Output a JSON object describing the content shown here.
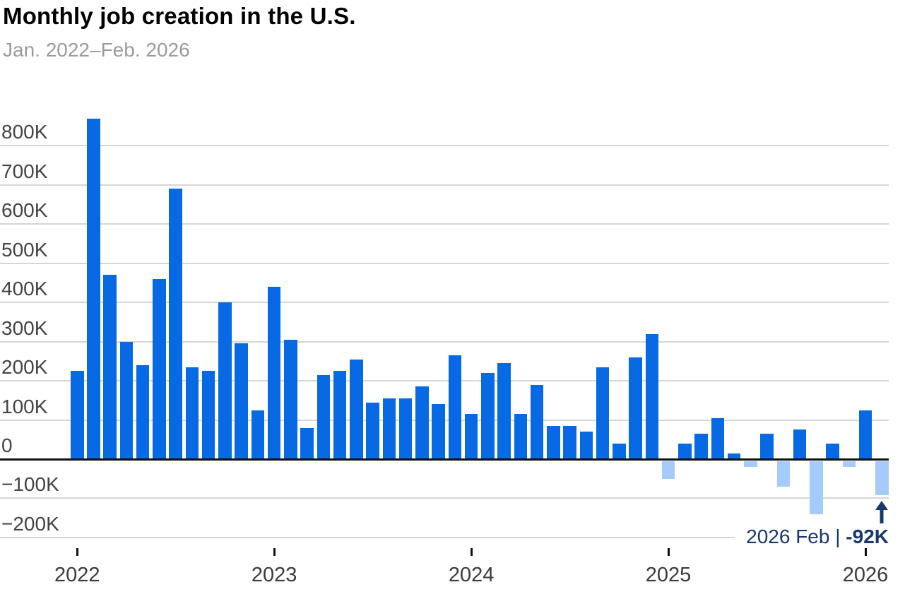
{
  "chart_data": {
    "type": "bar",
    "title": "Monthly job creation in the U.S.",
    "subtitle": "Jan. 2022–Feb. 2026",
    "unit": "jobs (thousands)",
    "categories": [
      "Jan 2022",
      "Feb 2022",
      "Mar 2022",
      "Apr 2022",
      "May 2022",
      "Jun 2022",
      "Jul 2022",
      "Aug 2022",
      "Sep 2022",
      "Oct 2022",
      "Nov 2022",
      "Dec 2022",
      "Jan 2023",
      "Feb 2023",
      "Mar 2023",
      "Apr 2023",
      "May 2023",
      "Jun 2023",
      "Jul 2023",
      "Aug 2023",
      "Sep 2023",
      "Oct 2023",
      "Nov 2023",
      "Dec 2023",
      "Jan 2024",
      "Feb 2024",
      "Mar 2024",
      "Apr 2024",
      "May 2024",
      "Jun 2024",
      "Jul 2024",
      "Aug 2024",
      "Sep 2024",
      "Oct 2024",
      "Nov 2024",
      "Dec 2024",
      "Jan 2025",
      "Feb 2025",
      "Mar 2025",
      "Apr 2025",
      "May 2025",
      "Jun 2025",
      "Jul 2025",
      "Aug 2025",
      "Sep 2025",
      "Oct 2025",
      "Nov 2025",
      "Dec 2025",
      "Jan 2026",
      "Feb 2026"
    ],
    "values": [
      225,
      870,
      470,
      300,
      240,
      460,
      690,
      235,
      225,
      400,
      295,
      125,
      440,
      305,
      80,
      215,
      225,
      255,
      145,
      155,
      155,
      185,
      140,
      265,
      115,
      220,
      245,
      115,
      190,
      85,
      85,
      70,
      235,
      40,
      260,
      320,
      -50,
      40,
      65,
      105,
      15,
      -20,
      65,
      -70,
      75,
      -140,
      40,
      -20,
      125,
      -92
    ],
    "ylim": [
      -200,
      880
    ],
    "grid": true,
    "legend": "none",
    "yticks": [
      {
        "label": "800K",
        "value": 800
      },
      {
        "label": "700K",
        "value": 700
      },
      {
        "label": "600K",
        "value": 600
      },
      {
        "label": "500K",
        "value": 500
      },
      {
        "label": "400K",
        "value": 400
      },
      {
        "label": "300K",
        "value": 300
      },
      {
        "label": "200K",
        "value": 200
      },
      {
        "label": "100K",
        "value": 100
      },
      {
        "label": "0",
        "value": 0
      },
      {
        "label": "−100K",
        "value": -100
      },
      {
        "label": "−200K",
        "value": -200
      }
    ],
    "xticks": [
      {
        "label": "2022",
        "month_index": 0
      },
      {
        "label": "2023",
        "month_index": 12
      },
      {
        "label": "2024",
        "month_index": 24
      },
      {
        "label": "2025",
        "month_index": 36
      },
      {
        "label": "2026",
        "month_index": 48
      }
    ],
    "annotation": {
      "label": "2026 Feb",
      "separator": "|",
      "value": "-92K",
      "arrow": "up"
    },
    "colors": {
      "positive_bar": "#0769e4",
      "negative_bar": "#a5cbfa",
      "annotation": "#16386b",
      "gridline": "#d6d6d6",
      "zero_line": "#111111",
      "axis_text": "#444444",
      "title": "#000000",
      "subtitle": "#9b9b9b"
    }
  }
}
